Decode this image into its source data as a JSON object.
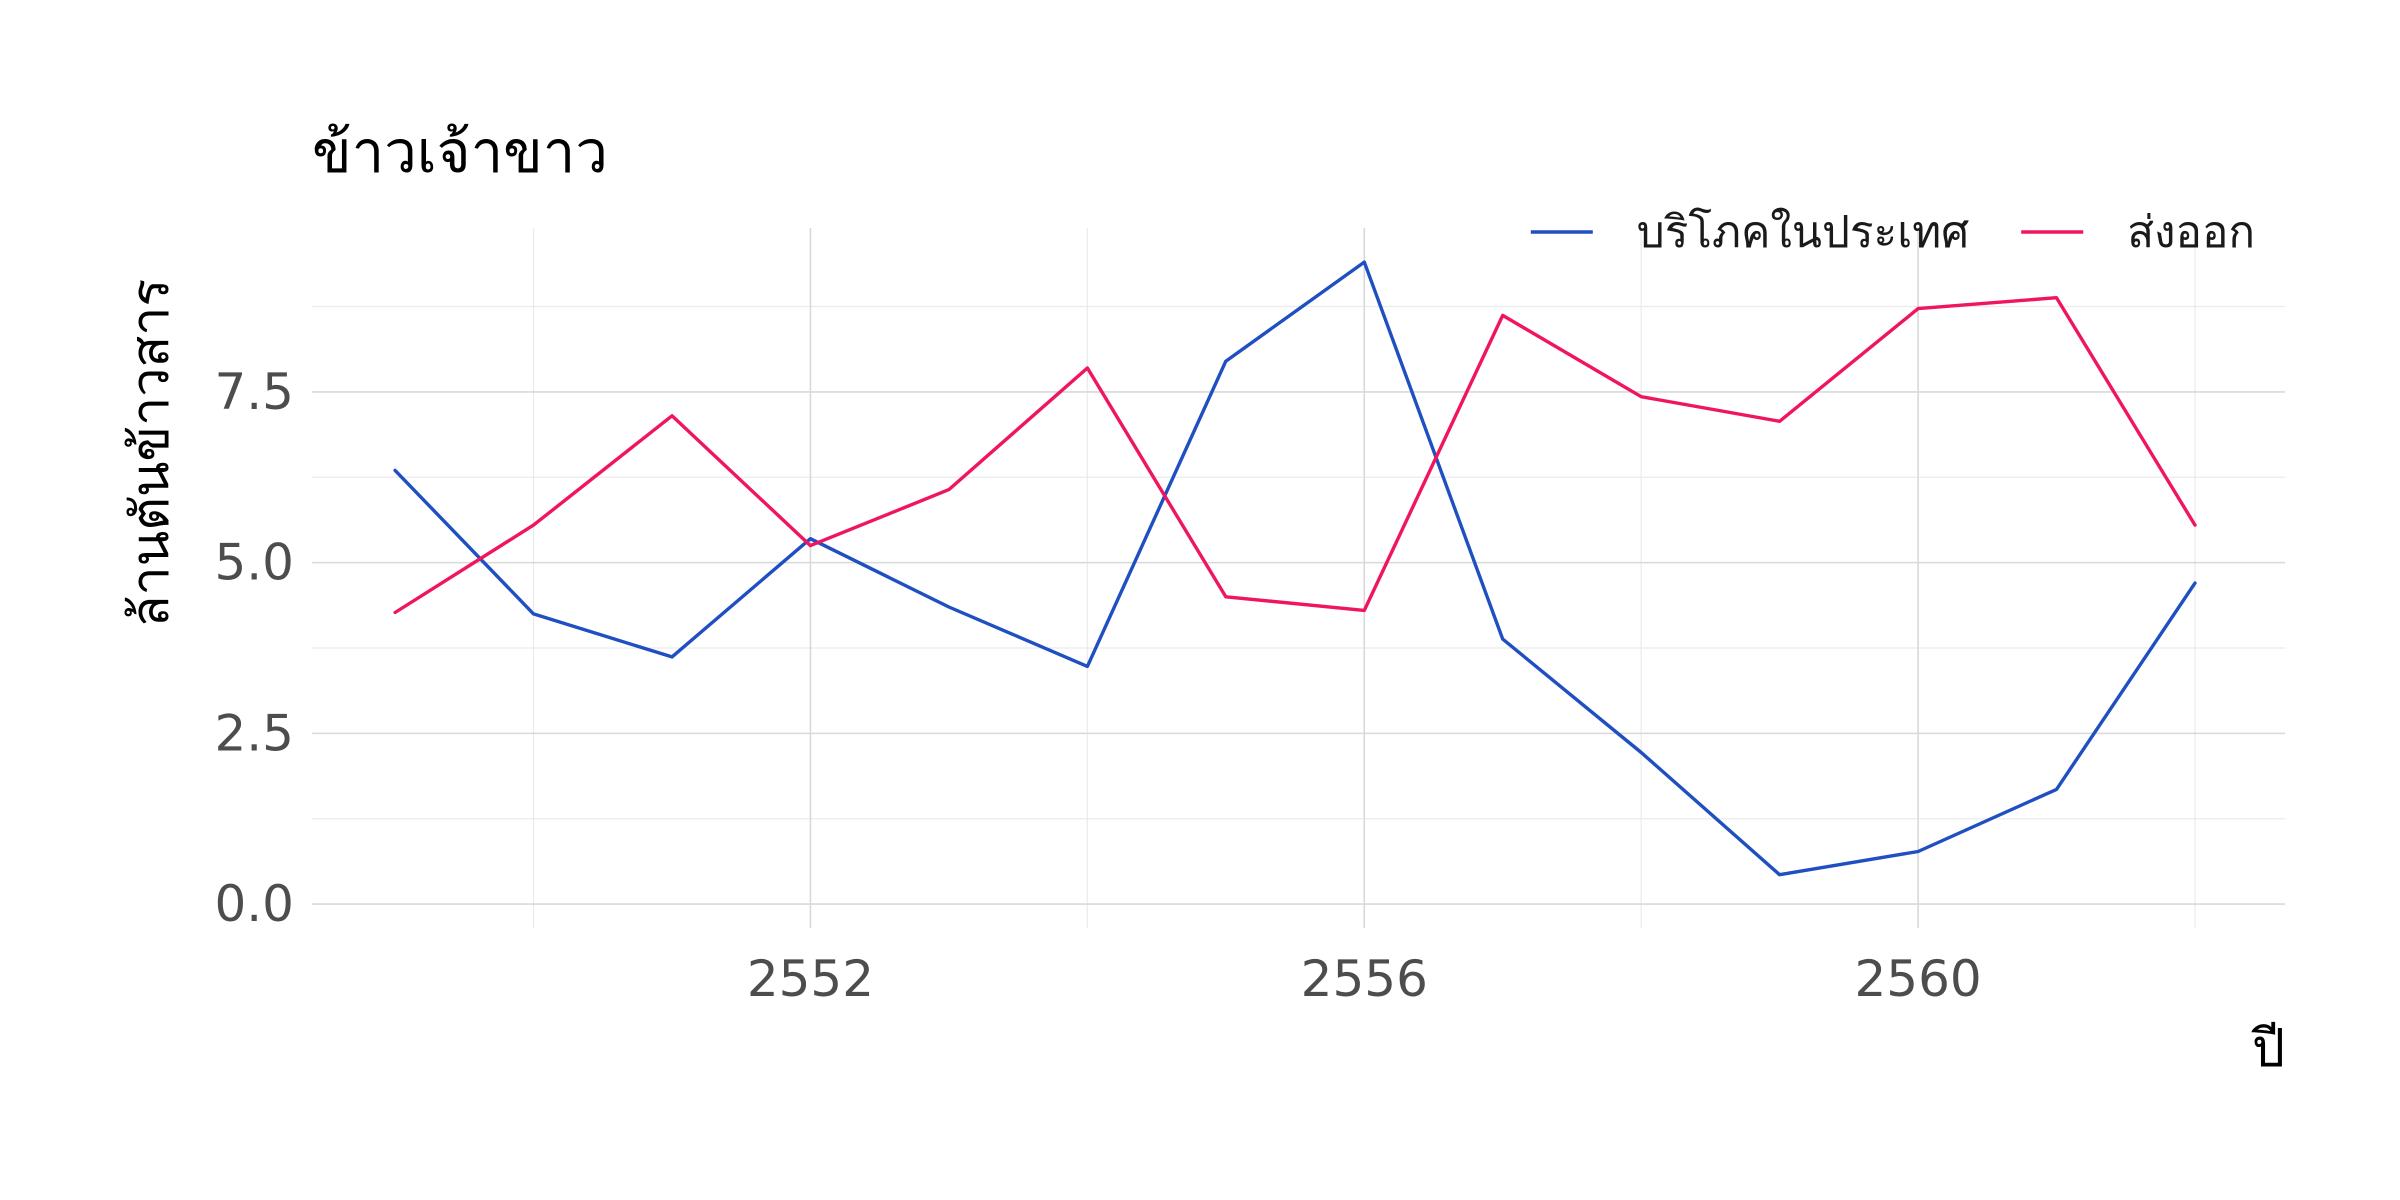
{
  "chart_data": {
    "type": "line",
    "title": "ข้าวเจ้าขาว",
    "xlabel": "ปี",
    "ylabel": "ล้านตันข้าวสาร",
    "x": [
      2549,
      2550,
      2551,
      2552,
      2553,
      2554,
      2555,
      2556,
      2557,
      2558,
      2559,
      2560,
      2561,
      2562
    ],
    "xlim": [
      2548.4,
      2562.65
    ],
    "ylim": [
      -0.35,
      9.9
    ],
    "x_ticks": [
      2552,
      2556,
      2560
    ],
    "y_ticks": [
      0.0,
      2.5,
      5.0,
      7.5
    ],
    "x_tick_labels": [
      "2552",
      "2556",
      "2560"
    ],
    "y_tick_labels": [
      "0.0",
      "2.5",
      "5.0",
      "7.5"
    ],
    "grid": true,
    "legend_position": "top-right",
    "series": [
      {
        "name": "บริโภคในประเทศ",
        "color": "#1f4fc1",
        "values": [
          6.35,
          4.25,
          3.62,
          5.35,
          4.35,
          3.48,
          7.95,
          9.4,
          3.88,
          2.22,
          0.43,
          0.77,
          1.68,
          4.7
        ]
      },
      {
        "name": "ส่งออก",
        "color": "#f0155f",
        "values": [
          4.27,
          5.55,
          7.15,
          5.25,
          6.07,
          7.85,
          4.5,
          4.3,
          8.62,
          7.43,
          7.07,
          8.72,
          8.88,
          5.55
        ]
      }
    ]
  }
}
